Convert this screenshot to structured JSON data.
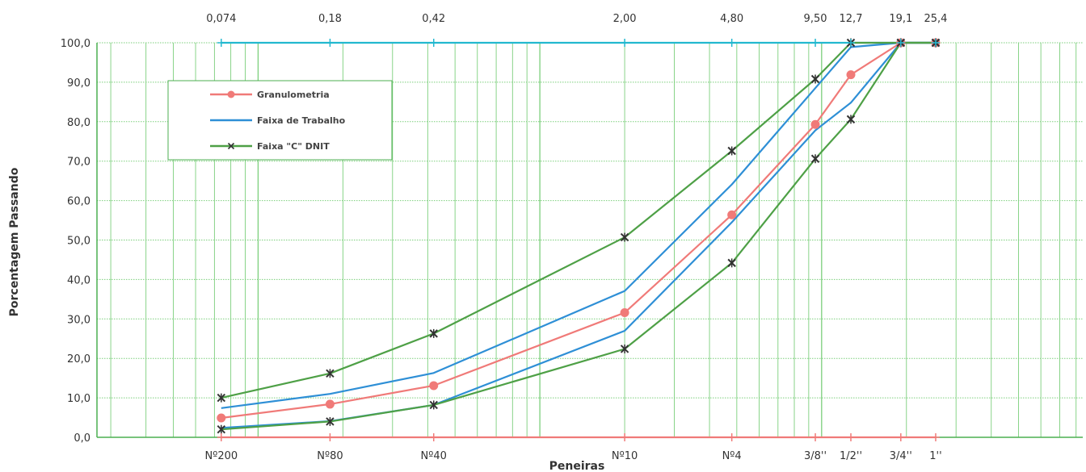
{
  "chart_data": {
    "type": "line",
    "xlabel": "Peneiras",
    "ylabel": "Porcentagem Passando",
    "x_scale": "log",
    "xlim_mm": [
      0.0268,
      84.5
    ],
    "ylim": [
      0,
      100
    ],
    "y_ticks": [
      "0,0",
      "10,0",
      "20,0",
      "30,0",
      "40,0",
      "50,0",
      "60,0",
      "70,0",
      "80,0",
      "90,0",
      "100,0"
    ],
    "grid": true,
    "sieve_sizes_mm": [
      0.074,
      0.18,
      0.42,
      2.0,
      4.8,
      9.5,
      12.7,
      19.1,
      25.4
    ],
    "top_tick_labels": [
      "0,074",
      "0,18",
      "0,42",
      "2,00",
      "4,80",
      "9,50",
      "12,7",
      "19,1",
      "25,4"
    ],
    "bottom_tick_labels": [
      "Nº200",
      "Nº80",
      "Nº40",
      "Nº10",
      "Nº4",
      "3/8''",
      "1/2''",
      "3/4''",
      "1''"
    ],
    "legend": {
      "placement": "upper-left",
      "entries": [
        "Granulometria",
        "Faixa de Trabalho",
        "Faixa \"C\" DNIT"
      ]
    },
    "colors": {
      "granulometria": "#f07a78",
      "faixa_trabalho": "#2e8fd6",
      "faixa_dnit": "#4ea046",
      "top_line": "#22b8cf",
      "grid": "#7ccf7c",
      "axis": "#4caf50"
    },
    "series": [
      {
        "name": "Granulometria",
        "color": "#f07a78",
        "marker": "circle",
        "x": [
          0.074,
          0.18,
          0.42,
          2.0,
          4.8,
          9.5,
          12.7,
          19.1,
          25.4
        ],
        "y": [
          4.9,
          8.4,
          13.1,
          31.6,
          56.4,
          79.3,
          91.9,
          100,
          100
        ]
      },
      {
        "name": "Faixa de Trabalho",
        "role": "upper",
        "color": "#2e8fd6",
        "marker": "none",
        "x": [
          0.074,
          0.18,
          0.42,
          2.0,
          4.8,
          9.5,
          12.7,
          19.1,
          25.4
        ],
        "y": [
          7.4,
          11.0,
          16.3,
          37.1,
          64.1,
          88.5,
          98.9,
          100,
          100
        ]
      },
      {
        "role": "lower",
        "color": "#2e8fd6",
        "marker": "none",
        "x": [
          0.074,
          0.18,
          0.42,
          2.0,
          4.8,
          9.5,
          12.7,
          19.1,
          25.4
        ],
        "y": [
          2.4,
          4.1,
          8.2,
          27.0,
          54.5,
          77.8,
          84.8,
          100,
          100
        ]
      },
      {
        "name": "Faixa \"C\" DNIT",
        "role": "upper",
        "color": "#4ea046",
        "marker": "star",
        "x": [
          0.074,
          0.18,
          0.42,
          2.0,
          4.8,
          9.5,
          12.7,
          19.1,
          25.4
        ],
        "y": [
          10.0,
          16.2,
          26.3,
          50.7,
          72.6,
          90.8,
          100,
          100,
          100
        ]
      },
      {
        "role": "lower",
        "color": "#4ea046",
        "marker": "star",
        "x": [
          0.074,
          0.18,
          0.42,
          2.0,
          4.8,
          9.5,
          12.7,
          19.1,
          25.4
        ],
        "y": [
          2.0,
          4.0,
          8.2,
          22.4,
          44.2,
          70.6,
          80.6,
          100,
          100
        ]
      },
      {
        "role": "top-reference",
        "color": "#22b8cf",
        "marker": "plus",
        "x": [
          0.074,
          0.18,
          0.42,
          2.0,
          4.8,
          9.5,
          12.7,
          19.1,
          25.4
        ],
        "y": [
          100,
          100,
          100,
          100,
          100,
          100,
          100,
          100,
          100
        ]
      },
      {
        "role": "bottom-reference",
        "color": "#f07a78",
        "marker": "plus",
        "x": [
          0.074,
          0.18,
          0.42,
          2.0,
          4.8,
          9.5,
          12.7,
          19.1,
          25.4
        ],
        "y": [
          0,
          0,
          0,
          0,
          0,
          0,
          0,
          0,
          0
        ]
      }
    ]
  }
}
